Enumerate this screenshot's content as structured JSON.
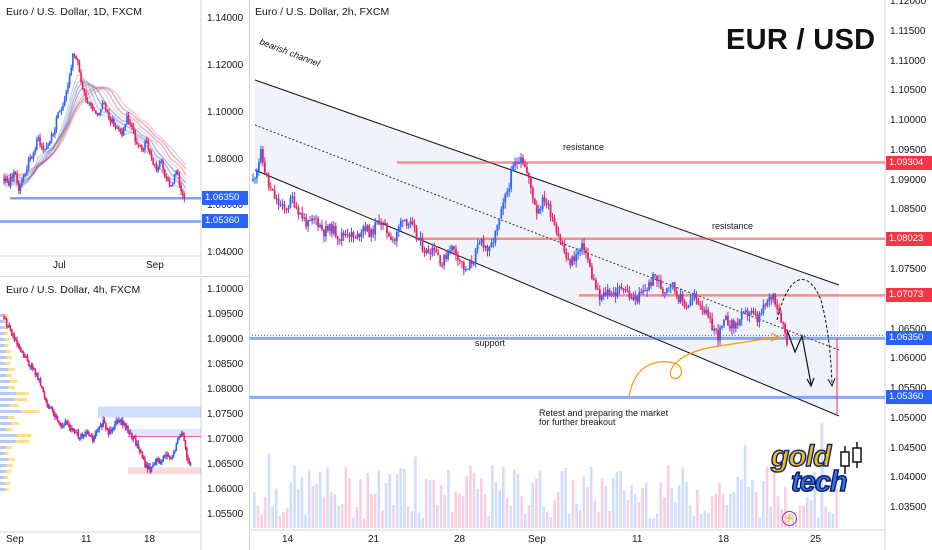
{
  "main": {
    "title": "Euro / U.S. Dollar, 2h, FXCM",
    "big_title": "EUR / USD",
    "y_ticks": [
      "1.12000",
      "1.11500",
      "1.11000",
      "1.10500",
      "1.10000",
      "1.09500",
      "1.09000",
      "1.08500",
      "1.08000",
      "1.07500",
      "1.07000",
      "1.06500",
      "1.06000",
      "1.05500",
      "1.05000",
      "1.04500",
      "1.04000",
      "1.03500"
    ],
    "x_ticks": [
      "14",
      "21",
      "28",
      "Sep",
      "11",
      "18",
      "25"
    ],
    "price_labels": [
      "1.09304",
      "1.08023",
      "1.07073",
      "1.06350",
      "1.05360"
    ],
    "annotations": {
      "channel": "bearish channel",
      "resistance_1": "resistance",
      "resistance_2": "resistance",
      "support": "support",
      "note_line1": "Retest and preparing the market",
      "note_line2": "for further breakout"
    },
    "logo_top": "gold",
    "logo_bottom": "tech"
  },
  "daily": {
    "title": "Euro / U.S. Dollar, 1D, FXCM",
    "y_ticks": [
      "1.14000",
      "1.12000",
      "1.10000",
      "1.08000",
      "1.06000",
      "1.04000"
    ],
    "x_ticks": [
      "Jul",
      "Sep"
    ],
    "price_labels": [
      "1.06350",
      "1.05360"
    ]
  },
  "h4": {
    "title": "Euro / U.S. Dollar, 4h, FXCM",
    "y_ticks": [
      "1.10000",
      "1.09500",
      "1.09000",
      "1.08500",
      "1.08000",
      "1.07500",
      "1.07000",
      "1.06500",
      "1.06000",
      "1.05500"
    ],
    "x_ticks": [
      "Sep",
      "11",
      "18"
    ]
  },
  "colors": {
    "up": "#2962ff",
    "down": "#e91e63",
    "resistance": "#f23645",
    "support": "#2962ff",
    "channel_fill": "#e8eaf6"
  },
  "chart_data": [
    {
      "type": "candlestick",
      "title": "Euro / U.S. Dollar, 2h, FXCM",
      "ylim": [
        1.032,
        1.12
      ],
      "x_ticks": [
        "14",
        "21",
        "28",
        "Sep",
        "11",
        "18",
        "25"
      ],
      "levels": [
        {
          "label": "resistance",
          "value": 1.09304
        },
        {
          "label": "resistance",
          "value": 1.08023
        },
        {
          "label": "",
          "value": 1.07073
        },
        {
          "label": "support",
          "value": 1.0635
        },
        {
          "label": "",
          "value": 1.0536
        }
      ],
      "path": [
        1.09,
        1.0945,
        1.089,
        1.0865,
        1.085,
        1.087,
        1.0845,
        1.0825,
        1.0835,
        1.0815,
        1.082,
        1.0805,
        1.0815,
        1.08,
        1.0825,
        1.081,
        1.0835,
        1.0815,
        1.08,
        1.084,
        1.0825,
        1.08,
        1.078,
        1.079,
        1.076,
        1.079,
        1.0775,
        1.0745,
        1.077,
        1.08,
        1.078,
        1.082,
        1.087,
        1.092,
        1.0945,
        1.09,
        1.085,
        1.087,
        1.084,
        1.08,
        1.076,
        1.0775,
        1.079,
        1.074,
        1.07,
        1.0715,
        1.071,
        1.0725,
        1.07,
        1.0705,
        1.072,
        1.074,
        1.0715,
        1.073,
        1.0705,
        1.069,
        1.0705,
        1.069,
        1.066,
        1.064,
        1.0665,
        1.0655,
        1.067,
        1.068,
        1.0665,
        1.069,
        1.071,
        1.067,
        1.062
      ]
    },
    {
      "type": "candlestick",
      "title": "Euro / U.S. Dollar, 1D, FXCM",
      "ylim": [
        1.038,
        1.146
      ],
      "path": [
        1.072,
        1.07,
        1.075,
        1.068,
        1.073,
        1.079,
        1.083,
        1.089,
        1.084,
        1.087,
        1.091,
        1.099,
        1.104,
        1.112,
        1.124,
        1.121,
        1.11,
        1.105,
        1.103,
        1.099,
        1.104,
        1.1,
        1.096,
        1.093,
        1.091,
        1.098,
        1.094,
        1.086,
        1.084,
        1.088,
        1.08,
        1.076,
        1.079,
        1.071,
        1.069,
        1.075,
        1.067,
        1.063
      ]
    },
    {
      "type": "candlestick",
      "title": "Euro / U.S. Dollar, 4h, FXCM",
      "ylim": [
        1.052,
        1.102
      ],
      "path": [
        1.0945,
        1.0925,
        1.09,
        1.088,
        1.0865,
        1.085,
        1.0835,
        1.081,
        1.078,
        1.076,
        1.0745,
        1.073,
        1.0735,
        1.072,
        1.071,
        1.0705,
        1.0715,
        1.07,
        1.072,
        1.0735,
        1.0715,
        1.073,
        1.0745,
        1.073,
        1.0715,
        1.07,
        1.068,
        1.065,
        1.064,
        1.066,
        1.0655,
        1.067,
        1.066,
        1.069,
        1.072,
        1.067,
        1.064
      ]
    }
  ]
}
